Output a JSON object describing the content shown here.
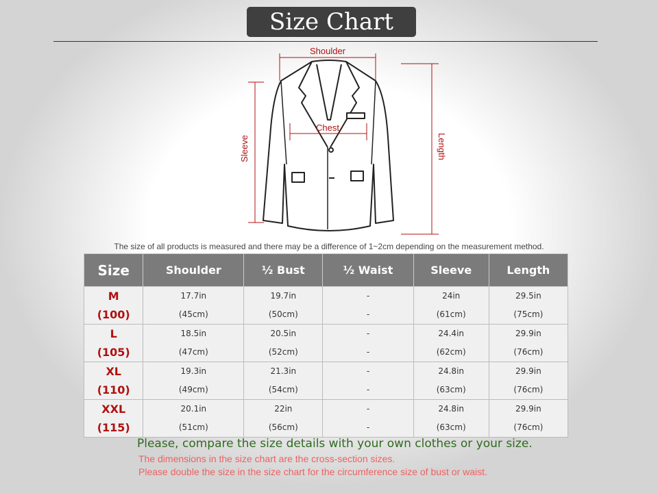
{
  "header": {
    "title": "Size Chart"
  },
  "diagram": {
    "labels": {
      "shoulder": "Shoulder",
      "sleeve": "Sleeve",
      "chest": "Chest",
      "length": "Length"
    }
  },
  "note": "The size of all products  is measured and there may be a difference of 1~2cm depending on the measurement method.",
  "table": {
    "header": [
      "Size",
      "Shoulder",
      "½ Bust",
      "½ Waist",
      "Sleeve",
      "Length"
    ],
    "rows": [
      [
        [
          "M",
          "(100)"
        ],
        [
          "17.7in",
          "(45cm)"
        ],
        [
          "19.7in",
          "(50cm)"
        ],
        [
          "-",
          "-"
        ],
        [
          "24in",
          "(61cm)"
        ],
        [
          "29.5in",
          "(75cm)"
        ]
      ],
      [
        [
          "L",
          "(105)"
        ],
        [
          "18.5in",
          "(47cm)"
        ],
        [
          "20.5in",
          "(52cm)"
        ],
        [
          "-",
          "-"
        ],
        [
          "24.4in",
          "(62cm)"
        ],
        [
          "29.9in",
          "(76cm)"
        ]
      ],
      [
        [
          "XL",
          "(110)"
        ],
        [
          "19.3in",
          "(49cm)"
        ],
        [
          "21.3in",
          "(54cm)"
        ],
        [
          "-",
          "-"
        ],
        [
          "24.8in",
          "(63cm)"
        ],
        [
          "29.9in",
          "(76cm)"
        ]
      ],
      [
        [
          "XXL",
          "(115)"
        ],
        [
          "20.1in",
          "(51cm)"
        ],
        [
          "22in",
          "(56cm)"
        ],
        [
          "-",
          "-"
        ],
        [
          "24.8in",
          "(63cm)"
        ],
        [
          "29.9in",
          "(76cm)"
        ]
      ]
    ]
  },
  "footer": {
    "compare": "Please, compare the size details with your own clothes or your size.",
    "notes": [
      "The dimensions in the size chart are the cross-section  sizes.",
      "Please double the size in the size chart for the circumference size of bust or waist."
    ]
  }
}
